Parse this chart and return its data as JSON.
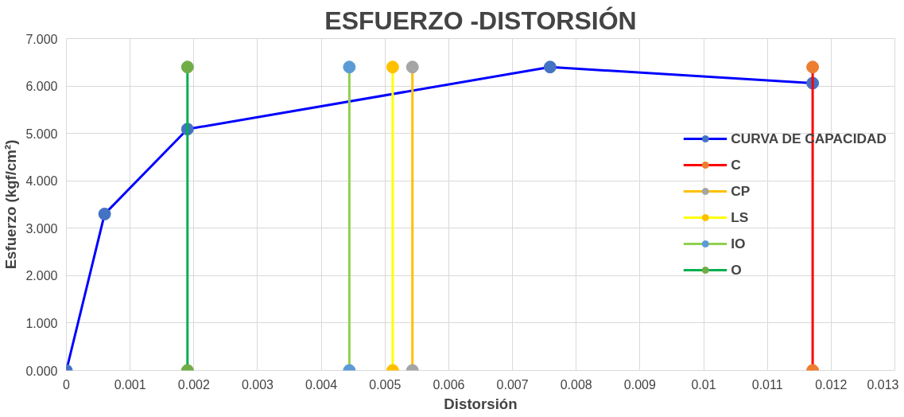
{
  "chart_data": {
    "type": "line",
    "title": "ESFUERZO -DISTORSIÓN",
    "xlabel": "Distorsión",
    "ylabel": "Esfuerzo (kgf/cm²)",
    "xlim": [
      0,
      0.013
    ],
    "ylim": [
      0,
      7
    ],
    "xticks": [
      0,
      0.001,
      0.002,
      0.003,
      0.004,
      0.005,
      0.006,
      0.007,
      0.008,
      0.009,
      0.01,
      0.011,
      0.012,
      0.013
    ],
    "yticks": [
      {
        "value": 0,
        "label": "0.000"
      },
      {
        "value": 1,
        "label": "1.000"
      },
      {
        "value": 2,
        "label": "2.000"
      },
      {
        "value": 3,
        "label": "3.000"
      },
      {
        "value": 4,
        "label": "4.000"
      },
      {
        "value": 5,
        "label": "5.000"
      },
      {
        "value": 6,
        "label": "6.000"
      },
      {
        "value": 7,
        "label": "7.000"
      }
    ],
    "grid": true,
    "legend": "right",
    "marker": "circle",
    "line_style": "solid",
    "series": [
      {
        "name": "CURVA DE CAPACIDAD",
        "color": "#0000ff",
        "colors": [
          "#4472c4",
          "#4472c4",
          "#4472c4",
          "#4472c4",
          "#4472c4"
        ],
        "x": [
          0,
          0.0006,
          0.0019,
          0.00759,
          0.01171
        ],
        "values": [
          0,
          3.3,
          5.09,
          6.4,
          6.06
        ]
      },
      {
        "name": "C",
        "color": "#ff0000",
        "colors": [
          "#ed7d31",
          "#ed7d31"
        ],
        "x": [
          0.01171,
          0.01171
        ],
        "values": [
          0,
          6.4
        ]
      },
      {
        "name": "CP",
        "color": "#ffc000",
        "colors": [
          "#a5a5a5",
          "#a5a5a5"
        ],
        "x": [
          0.00543,
          0.00543
        ],
        "values": [
          0,
          6.4
        ]
      },
      {
        "name": "LS",
        "color": "#ffff00",
        "colors": [
          "#ffc000",
          "#ffc000"
        ],
        "x": [
          0.00512,
          0.00512
        ],
        "values": [
          0,
          6.4
        ]
      },
      {
        "name": "IO",
        "color": "#92d050",
        "colors": [
          "#5b9bd5",
          "#5b9bd5"
        ],
        "x": [
          0.00444,
          0.00444
        ],
        "values": [
          0,
          6.4
        ]
      },
      {
        "name": "O",
        "color": "#00b050",
        "colors": [
          "#70ad47",
          "#70ad47"
        ],
        "x": [
          0.0019,
          0.0019
        ],
        "values": [
          0,
          6.4
        ]
      }
    ]
  }
}
